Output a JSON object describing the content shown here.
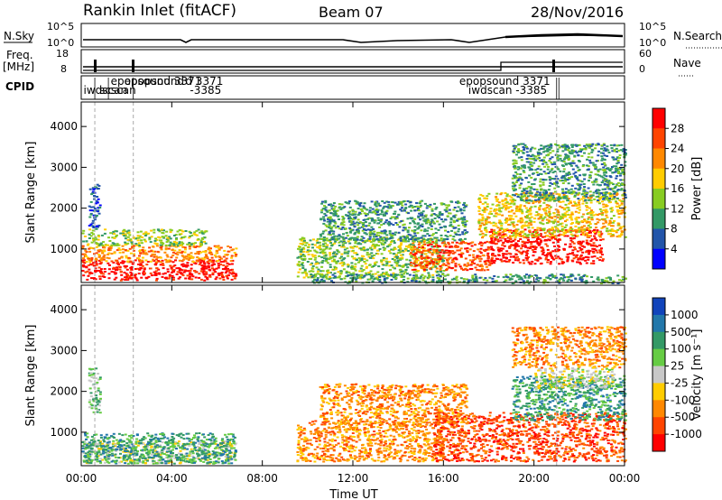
{
  "header": {
    "station": "Rankin Inlet (fitACF)",
    "beam": "Beam 07",
    "date": "28/Nov/2016"
  },
  "strip": {
    "nsky_label": "N.Sky",
    "nsearch_label": "N.Search",
    "freq_label": "Freq.",
    "freq_unit": "[MHz]",
    "nave_label": "Nave",
    "cpid_label": "CPID",
    "left_ticks_top": [
      "10^5",
      "10^0"
    ],
    "right_ticks_top": [
      "10^5",
      "10^0"
    ],
    "left_ticks_freq": [
      "18",
      "8"
    ],
    "right_ticks_nave": [
      "60",
      "0"
    ],
    "cpid_labels": [
      {
        "text": "epopsound",
        "hour": 1.3,
        "row": 0
      },
      {
        "text": "iwdscan",
        "hour": 0.1,
        "row": 1
      },
      {
        "text": "scscan",
        "hour": 0.8,
        "row": 1
      },
      {
        "text": "epopsound",
        "hour": 1.9,
        "row": 0
      },
      {
        "text": "3371",
        "hour": 4.1,
        "row": 0
      },
      {
        "text": "d 3371",
        "hour": 4.6,
        "row": 0
      },
      {
        "text": "-3385",
        "hour": 4.8,
        "row": 1
      },
      {
        "text": "epopsound  3371",
        "hour": 16.7,
        "row": 0
      },
      {
        "text": "iwdscan  -3385",
        "hour": 17.1,
        "row": 1
      }
    ]
  },
  "chart_data": [
    {
      "type": "heatmap",
      "title": "Power",
      "x_ticks": [
        "00:00",
        "04:00",
        "08:00",
        "12:00",
        "16:00",
        "20:00",
        "00:00"
      ],
      "xlim_hours": [
        0,
        24
      ],
      "ylabel": "Slant Range [km]",
      "y_ticks": [
        1000,
        2000,
        3000,
        4000
      ],
      "ylim": [
        180,
        4600
      ],
      "colorbar": {
        "label": "Power [dB]",
        "ticks": [
          "28",
          "24",
          "20",
          "16",
          "12",
          "8",
          "4"
        ],
        "colors": [
          "#ff0000",
          "#ff4400",
          "#ff8800",
          "#ffcc00",
          "#88cc22",
          "#339966",
          "#2255aa",
          "#0000ff"
        ]
      },
      "regions": [
        {
          "h0": 0.0,
          "h1": 6.8,
          "r0": 250,
          "r1": 750,
          "level": 0
        },
        {
          "h0": 0.0,
          "h1": 6.8,
          "r0": 700,
          "r1": 1100,
          "level": 2
        },
        {
          "h0": 0.0,
          "h1": 5.5,
          "r0": 1100,
          "r1": 1500,
          "level": 4
        },
        {
          "h0": 0.3,
          "h1": 0.8,
          "r0": 1500,
          "r1": 2600,
          "level": 6
        },
        {
          "h0": 9.5,
          "h1": 16.0,
          "r0": 300,
          "r1": 1300,
          "level": 4
        },
        {
          "h0": 10.5,
          "h1": 17.0,
          "r0": 1200,
          "r1": 2200,
          "level": 5
        },
        {
          "h0": 14.5,
          "h1": 18.0,
          "r0": 500,
          "r1": 1200,
          "level": 1
        },
        {
          "h0": 18.0,
          "h1": 23.0,
          "r0": 650,
          "r1": 1500,
          "level": 0
        },
        {
          "h0": 17.5,
          "h1": 24.0,
          "r0": 1300,
          "r1": 2400,
          "level": 3
        },
        {
          "h0": 19.0,
          "h1": 24.0,
          "r0": 2200,
          "r1": 3600,
          "level": 5
        },
        {
          "h0": 10.0,
          "h1": 24.0,
          "r0": 180,
          "r1": 400,
          "level": 5
        }
      ]
    },
    {
      "type": "heatmap",
      "title": "Velocity",
      "x_ticks": [
        "00:00",
        "04:00",
        "08:00",
        "12:00",
        "16:00",
        "20:00",
        "00:00"
      ],
      "xlabel": "Time UT",
      "xlim_hours": [
        0,
        24
      ],
      "ylabel": "Slant Range [km]",
      "y_ticks": [
        1000,
        2000,
        3000,
        4000
      ],
      "ylim": [
        180,
        4600
      ],
      "colorbar": {
        "label": "Velocity [m s⁻¹]",
        "ticks": [
          "1000",
          "500",
          "100",
          "25",
          "-25",
          "-100",
          "-500",
          "-1000"
        ],
        "colors": [
          "#1144bb",
          "#2277aa",
          "#339966",
          "#66cc44",
          "#c8c8c8",
          "#ffcc00",
          "#ff8800",
          "#ff4400",
          "#ff0000"
        ]
      },
      "regions": [
        {
          "h0": 0.0,
          "h1": 6.8,
          "r0": 250,
          "r1": 800,
          "level": 4
        },
        {
          "h0": 0.0,
          "h1": 6.8,
          "r0": 250,
          "r1": 1000,
          "level": 2
        },
        {
          "h0": 0.3,
          "h1": 0.8,
          "r0": 1500,
          "r1": 2600,
          "level": 3
        },
        {
          "h0": 9.5,
          "h1": 16.0,
          "r0": 300,
          "r1": 1300,
          "level": 6
        },
        {
          "h0": 10.5,
          "h1": 17.0,
          "r0": 1200,
          "r1": 2200,
          "level": 6
        },
        {
          "h0": 15.5,
          "h1": 24.0,
          "r0": 300,
          "r1": 1500,
          "level": 7
        },
        {
          "h0": 19.0,
          "h1": 24.0,
          "r0": 1300,
          "r1": 2400,
          "level": 2
        },
        {
          "h0": 20.0,
          "h1": 23.5,
          "r0": 2100,
          "r1": 2600,
          "level": 4
        },
        {
          "h0": 19.0,
          "h1": 24.0,
          "r0": 2600,
          "r1": 3600,
          "level": 6
        }
      ]
    }
  ]
}
